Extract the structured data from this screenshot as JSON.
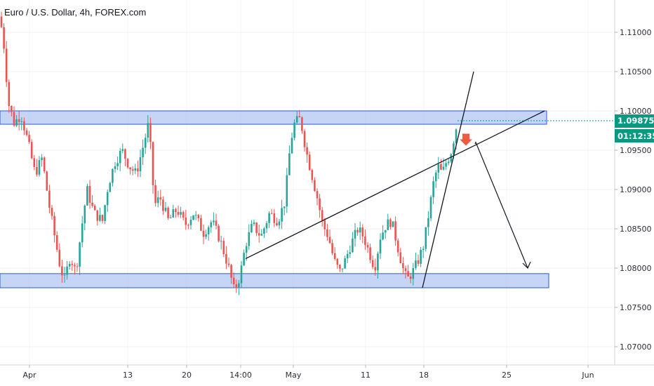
{
  "header": {
    "title": "Euro / U.S. Dollar, 4h, FOREX.com"
  },
  "chart_data": {
    "type": "candlestick",
    "title": "Euro / U.S. Dollar, 4h, FOREX.com",
    "xlabel": "",
    "ylabel": "",
    "ylim": [
      1.0675,
      1.115
    ],
    "y_ticks": [
      "1.11000",
      "1.10500",
      "1.10000",
      "1.09500",
      "1.09000",
      "1.08500",
      "1.08000",
      "1.07500",
      "1.07000"
    ],
    "x_ticks": [
      "Apr",
      "13",
      "20",
      "14:00",
      "May",
      "11",
      "18",
      "25",
      "Jun"
    ],
    "last_price": {
      "value": 1.09875,
      "label": "1.09875"
    },
    "countdown": "01:12:35",
    "colors": {
      "up": "#26a69a",
      "down": "#ef5350",
      "zone_fill": "#b3c6f2",
      "zone_stroke": "#2b5ad3",
      "price_tag": "#089981",
      "arrow": "#f05a41"
    },
    "price_path": [
      [
        0,
        1.112
      ],
      [
        6,
        1.108
      ],
      [
        12,
        1.101
      ],
      [
        20,
        1.0985
      ],
      [
        30,
        1.0995
      ],
      [
        40,
        1.096
      ],
      [
        50,
        1.092
      ],
      [
        60,
        1.094
      ],
      [
        70,
        1.088
      ],
      [
        78,
        1.084
      ],
      [
        86,
        1.08
      ],
      [
        92,
        1.0785
      ],
      [
        100,
        1.0815
      ],
      [
        108,
        1.0795
      ],
      [
        116,
        1.085
      ],
      [
        124,
        1.09
      ],
      [
        134,
        1.087
      ],
      [
        146,
        1.086
      ],
      [
        154,
        1.0905
      ],
      [
        164,
        1.0935
      ],
      [
        174,
        1.095
      ],
      [
        184,
        1.093
      ],
      [
        194,
        1.092
      ],
      [
        204,
        1.0955
      ],
      [
        212,
        1.0985
      ],
      [
        220,
        1.088
      ],
      [
        228,
        1.089
      ],
      [
        240,
        1.086
      ],
      [
        252,
        1.0875
      ],
      [
        264,
        1.0855
      ],
      [
        276,
        1.087
      ],
      [
        290,
        1.0845
      ],
      [
        302,
        1.086
      ],
      [
        314,
        1.0835
      ],
      [
        326,
        1.08
      ],
      [
        334,
        1.077
      ],
      [
        342,
        1.079
      ],
      [
        350,
        1.083
      ],
      [
        360,
        1.0855
      ],
      [
        372,
        1.084
      ],
      [
        384,
        1.087
      ],
      [
        396,
        1.086
      ],
      [
        406,
        1.0885
      ],
      [
        414,
        1.096
      ],
      [
        420,
        1.0985
      ],
      [
        428,
        1.099
      ],
      [
        436,
        1.095
      ],
      [
        444,
        1.092
      ],
      [
        452,
        1.089
      ],
      [
        460,
        1.0855
      ],
      [
        468,
        1.084
      ],
      [
        476,
        1.081
      ],
      [
        484,
        1.0795
      ],
      [
        492,
        1.081
      ],
      [
        500,
        1.083
      ],
      [
        510,
        1.085
      ],
      [
        518,
        1.084
      ],
      [
        526,
        1.082
      ],
      [
        534,
        1.08
      ],
      [
        542,
        1.084
      ],
      [
        550,
        1.0855
      ],
      [
        558,
        1.086
      ],
      [
        566,
        1.083
      ],
      [
        574,
        1.08
      ],
      [
        580,
        1.0785
      ],
      [
        588,
        1.0795
      ],
      [
        596,
        1.081
      ],
      [
        604,
        1.083
      ],
      [
        612,
        1.0875
      ],
      [
        618,
        1.091
      ],
      [
        624,
        1.093
      ],
      [
        630,
        1.092
      ],
      [
        636,
        1.0935
      ],
      [
        642,
        1.0945
      ],
      [
        648,
        1.097
      ],
      [
        652,
        1.09875
      ]
    ],
    "zones": [
      {
        "low": 1.0983,
        "high": 1.1
      },
      {
        "low": 1.0775,
        "high": 1.0793
      }
    ],
    "trendlines": [
      {
        "x1": 350,
        "y1": 1.0812,
        "x2": 776,
        "y2": 1.1
      },
      {
        "x1": 602,
        "y1": 1.0775,
        "x2": 675,
        "y2": 1.105
      }
    ],
    "projection": {
      "from": [
        678,
        1.096
      ],
      "to": [
        752,
        1.08
      ]
    },
    "signal_arrow": {
      "x": 664,
      "y": 1.0962
    },
    "x_tick_positions": [
      42,
      182,
      266,
      343,
      418,
      521,
      604,
      722,
      838
    ]
  }
}
